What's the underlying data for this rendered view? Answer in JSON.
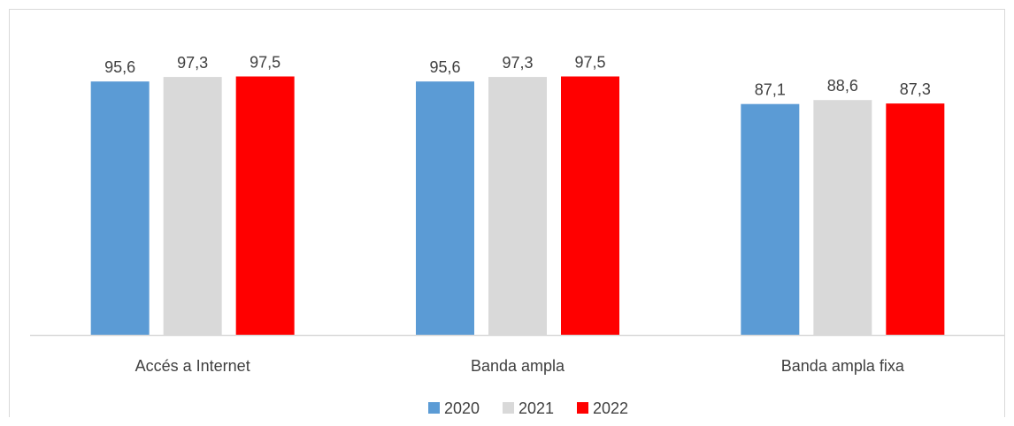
{
  "chart_data": {
    "type": "bar",
    "categories": [
      "Accés a Internet",
      "Banda ampla",
      "Banda ampla fixa"
    ],
    "series": [
      {
        "name": "2020",
        "values": [
          95.6,
          95.6,
          87.1
        ],
        "color": "#5b9bd5"
      },
      {
        "name": "2021",
        "values": [
          97.3,
          97.3,
          88.6
        ],
        "color": "#d9d9d9"
      },
      {
        "name": "2022",
        "values": [
          97.5,
          97.5,
          87.3
        ],
        "color": "#ff0000"
      }
    ],
    "value_labels": [
      [
        "95,6",
        "95,6",
        "87,1"
      ],
      [
        "97,3",
        "97,3",
        "88,6"
      ],
      [
        "97,5",
        "97,5",
        "87,3"
      ]
    ],
    "ylim": [
      0,
      100
    ],
    "grid": false,
    "legend_position": "bottom",
    "axis_color": "#d9d9d9",
    "label_color": "#404040"
  }
}
